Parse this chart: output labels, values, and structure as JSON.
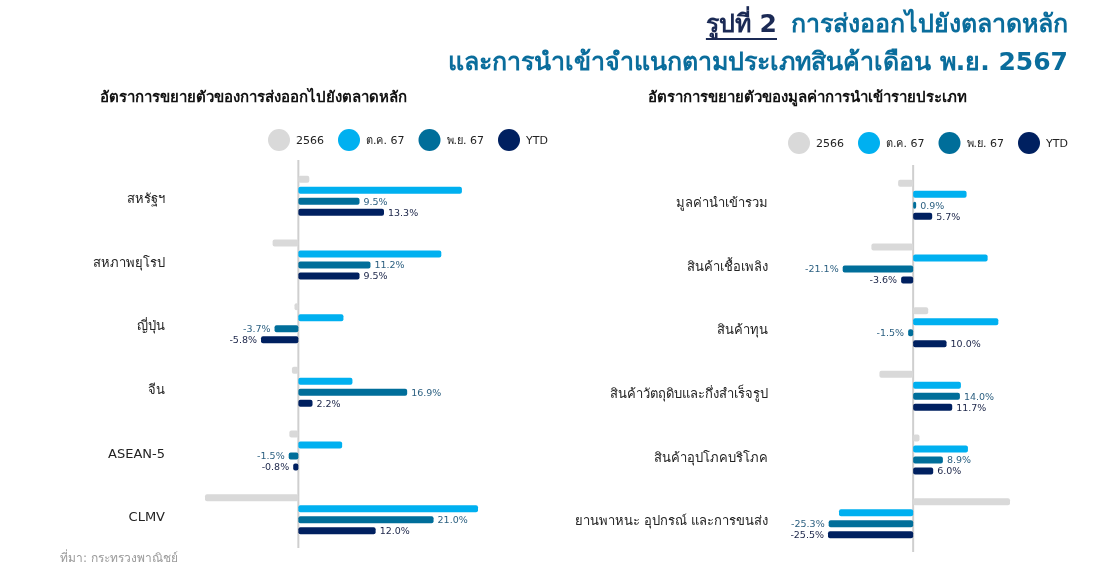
{
  "chart_data": [
    {
      "type": "bar",
      "orientation": "horizontal",
      "title": "อัตราการขยายตัวของการส่งออกไปยังตลาดหลัก",
      "legend": "top",
      "annotations": [
        "รูปที่ 2",
        "การส่งออกไปยังตลาดหลัก",
        "และการนำเข้าจำแนกตามประเภทสินค้าเดือน พ.ย. 2567",
        "ที่มา: กระทรวงพาณิชย์"
      ],
      "categories": [
        "สหรัฐฯ",
        "สหภาพยุโรป",
        "ญี่ปุ่น",
        "จีน",
        "ASEAN-5",
        "CLMV"
      ],
      "series": [
        {
          "name": "2566",
          "color": "#d9d9d9",
          "values": [
            1.7,
            -4.0,
            -0.6,
            -1.0,
            -1.4,
            -14.5
          ]
        },
        {
          "name": "ต.ค. 67",
          "color": "#00b0f0",
          "values": [
            25.4,
            22.2,
            7.0,
            8.4,
            6.8,
            27.9
          ]
        },
        {
          "name": "พ.ย. 67",
          "color": "#006e9a",
          "values": [
            9.5,
            11.2,
            -3.7,
            16.9,
            -1.5,
            21.0
          ],
          "value_labels": [
            "9.5%",
            "11.2%",
            "-3.7%",
            "16.9%",
            "-1.5%",
            "21.0%"
          ]
        },
        {
          "name": "YTD",
          "color": "#002060",
          "values": [
            13.3,
            9.5,
            -5.8,
            2.2,
            -0.8,
            12.0
          ],
          "value_labels": [
            "13.3%",
            "9.5%",
            "-5.8%",
            "2.2%",
            "-0.8%",
            "12.0%"
          ]
        }
      ]
    },
    {
      "type": "bar",
      "orientation": "horizontal",
      "title": "อัตราการขยายตัวของมูลค่าการนำเข้ารายประเภท",
      "legend": "top",
      "categories": [
        "มูลค่านำเข้ารวม",
        "สินค้าเชื้อเพลิง",
        "สินค้าทุน",
        "สินค้าวัตถุดิบและกึ่งสำเร็จรูป",
        "สินค้าอุปโภคบริโภค",
        "ยานพาหนะ อุปกรณ์ และการขนส่ง"
      ],
      "series": [
        {
          "name": "2566",
          "color": "#d9d9d9",
          "values": [
            -4.5,
            -12.5,
            4.5,
            -10.1,
            1.9,
            29.0
          ]
        },
        {
          "name": "ต.ค. 67",
          "color": "#00b0f0",
          "values": [
            16.0,
            22.3,
            25.5,
            14.3,
            16.4,
            -22.2
          ]
        },
        {
          "name": "พ.ย. 67",
          "color": "#006e9a",
          "values": [
            0.9,
            -21.1,
            -1.5,
            14.0,
            8.9,
            -25.3
          ],
          "value_labels": [
            "0.9%",
            "-21.1%",
            "-1.5%",
            "14.0%",
            "8.9%",
            "-25.3%"
          ]
        },
        {
          "name": "YTD",
          "color": "#002060",
          "values": [
            5.7,
            -3.6,
            10.0,
            11.7,
            6.0,
            -25.5
          ],
          "value_labels": [
            "5.7%",
            "-3.6%",
            "10.0%",
            "11.7%",
            "6.0%",
            "-25.5%"
          ]
        }
      ]
    }
  ]
}
